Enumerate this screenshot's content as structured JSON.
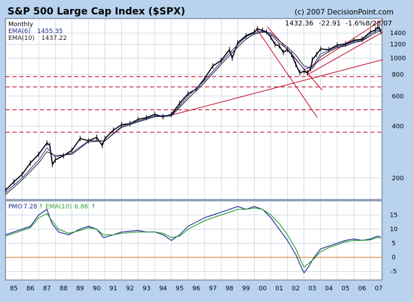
{
  "title": "S&P 500 Large Cap Index ($SPX)",
  "copyright": "(c) 2007 DecisionPoint.com",
  "quote": {
    "last": "1432.36",
    "change": "-22.91",
    "pct_change": "-1.6%",
    "date": "8/28/07"
  },
  "price_panel": {
    "period": "Monthly",
    "ema6_label": "EMA(6)",
    "ema6_value": "1455.35",
    "ema10_label": "EMA(10)",
    "ema10_value": "1437.22"
  },
  "pmo_panel": {
    "pmo_label": "PMO",
    "pmo_value": "7.28",
    "ema_label": "EMA(10)",
    "ema_value": "6.86"
  },
  "colors": {
    "background": "#b9d3ee",
    "panel": "#ffffff",
    "grid": "#b7c7d8",
    "price_bars": "#000000",
    "ema6": "#1f2b8f",
    "ema10": "#1e1e1e",
    "trendlines": "#c8102e",
    "pmo": "#1f2b8f",
    "pmo_signal": "#2e9c35",
    "zero_line": "#c8781e",
    "arrow_up": "#2e9c35"
  },
  "chart_data": [
    {
      "type": "line",
      "title": "S&P 500 Large Cap Index ($SPX)",
      "period": "Monthly",
      "xlabel": "",
      "ylabel": "",
      "x_ticks": [
        "85",
        "86",
        "87",
        "88",
        "89",
        "90",
        "91",
        "92",
        "93",
        "94",
        "95",
        "96",
        "97",
        "98",
        "99",
        "00",
        "01",
        "02",
        "03",
        "04",
        "05",
        "06",
        "07"
      ],
      "x_range": [
        1985.0,
        2007.7
      ],
      "y_scale": "log",
      "y_ticks": [
        200,
        400,
        600,
        800,
        1000,
        1200,
        1400
      ],
      "y_range": [
        150,
        1700
      ],
      "grid": true,
      "series": [
        {
          "name": "$SPX",
          "x": [
            1985.0,
            1985.5,
            1986.0,
            1986.5,
            1987.0,
            1987.5,
            1987.67,
            1987.83,
            1988.0,
            1988.5,
            1989.0,
            1989.5,
            1990.0,
            1990.5,
            1990.83,
            1991.0,
            1991.5,
            1992.0,
            1992.5,
            1993.0,
            1993.5,
            1994.0,
            1994.5,
            1995.0,
            1995.5,
            1996.0,
            1996.5,
            1997.0,
            1997.5,
            1998.0,
            1998.5,
            1998.67,
            1999.0,
            1999.5,
            2000.0,
            2000.2,
            2000.5,
            2000.75,
            2001.0,
            2001.25,
            2001.5,
            2001.75,
            2002.0,
            2002.25,
            2002.5,
            2002.75,
            2003.0,
            2003.2,
            2003.4,
            2003.5,
            2003.75,
            2004.0,
            2004.5,
            2005.0,
            2005.5,
            2006.0,
            2006.5,
            2007.0,
            2007.3,
            2007.45,
            2007.55,
            2007.63
          ],
          "y": [
            170,
            190,
            210,
            245,
            275,
            320,
            310,
            240,
            255,
            270,
            290,
            340,
            330,
            345,
            310,
            340,
            380,
            410,
            415,
            440,
            450,
            470,
            455,
            470,
            545,
            620,
            660,
            760,
            900,
            970,
            1120,
            1000,
            1230,
            1350,
            1420,
            1480,
            1450,
            1420,
            1320,
            1200,
            1180,
            1080,
            1120,
            1050,
            920,
            820,
            840,
            820,
            870,
            980,
            1050,
            1130,
            1120,
            1190,
            1210,
            1270,
            1290,
            1420,
            1460,
            1520,
            1480,
            1432
          ]
        },
        {
          "name": "EMA(6)",
          "x": [
            1985.0,
            1986.0,
            1987.0,
            1987.5,
            1988.0,
            1989.0,
            1990.0,
            1991.0,
            1992.0,
            1993.0,
            1994.0,
            1995.0,
            1996.0,
            1997.0,
            1998.0,
            1999.0,
            1999.5,
            2000.0,
            2000.5,
            2001.0,
            2001.5,
            2002.0,
            2002.5,
            2003.0,
            2003.5,
            2004.0,
            2004.5,
            2005.0,
            2005.5,
            2006.0,
            2006.5,
            2007.0,
            2007.4,
            2007.63
          ],
          "y": [
            165,
            200,
            255,
            300,
            265,
            280,
            330,
            330,
            400,
            430,
            460,
            465,
            600,
            740,
            950,
            1200,
            1330,
            1400,
            1440,
            1370,
            1220,
            1130,
            990,
            860,
            890,
            1060,
            1110,
            1170,
            1190,
            1250,
            1270,
            1380,
            1450,
            1455.35
          ]
        },
        {
          "name": "EMA(10)",
          "x": [
            1985.0,
            1986.0,
            1987.0,
            1987.5,
            1988.0,
            1989.0,
            1990.0,
            1991.0,
            1992.0,
            1993.0,
            1994.0,
            1995.0,
            1996.0,
            1997.0,
            1998.0,
            1999.0,
            1999.5,
            2000.0,
            2000.5,
            2001.0,
            2001.5,
            2002.0,
            2002.5,
            2003.0,
            2003.5,
            2004.0,
            2004.5,
            2005.0,
            2005.5,
            2006.0,
            2006.5,
            2007.0,
            2007.4,
            2007.63
          ],
          "y": [
            160,
            195,
            245,
            285,
            270,
            275,
            325,
            330,
            395,
            425,
            455,
            460,
            580,
            720,
            920,
            1160,
            1290,
            1380,
            1420,
            1400,
            1260,
            1160,
            1040,
            900,
            870,
            1020,
            1090,
            1150,
            1180,
            1230,
            1260,
            1350,
            1420,
            1437.22
          ]
        }
      ],
      "horizontal_lines": [
        370,
        500,
        680,
        780
      ],
      "trendlines": [
        {
          "x": [
            1995.0,
            2007.75
          ],
          "y": [
            465,
            980
          ]
        },
        {
          "x": [
            2000.1,
            2003.8
          ],
          "y": [
            1500,
            450
          ]
        },
        {
          "x": [
            2000.8,
            2004.1
          ],
          "y": [
            1520,
            650
          ]
        },
        {
          "x": [
            2003.2,
            2007.75
          ],
          "y": [
            800,
            1420
          ]
        },
        {
          "x": [
            2003.2,
            2007.75
          ],
          "y": [
            870,
            1680
          ]
        }
      ]
    },
    {
      "type": "line",
      "title": "PMO",
      "xlabel": "",
      "ylabel": "",
      "x_ticks": [
        "85",
        "86",
        "87",
        "88",
        "89",
        "90",
        "91",
        "92",
        "93",
        "94",
        "95",
        "96",
        "97",
        "98",
        "99",
        "00",
        "01",
        "02",
        "03",
        "04",
        "05",
        "06",
        "07"
      ],
      "y_ticks": [
        -5,
        0,
        5,
        10,
        15
      ],
      "y_range": [
        -8,
        20
      ],
      "grid": true,
      "series": [
        {
          "name": "PMO",
          "x": [
            1985.0,
            1986.0,
            1986.5,
            1987.0,
            1987.5,
            1987.8,
            1988.2,
            1988.8,
            1989.5,
            1990.0,
            1990.5,
            1990.9,
            1991.5,
            1992.0,
            1993.0,
            1993.5,
            1994.0,
            1994.5,
            1995.0,
            1995.5,
            1996.0,
            1997.0,
            1997.5,
            1998.0,
            1998.5,
            1999.0,
            1999.5,
            2000.0,
            2000.5,
            2001.0,
            2001.5,
            2002.0,
            2002.5,
            2002.8,
            2003.0,
            2003.3,
            2003.6,
            2004.0,
            2004.5,
            2005.0,
            2005.5,
            2006.0,
            2006.5,
            2007.0,
            2007.4,
            2007.63
          ],
          "y": [
            8,
            10,
            11,
            15,
            17,
            12,
            9,
            8,
            10,
            11,
            10,
            7,
            8,
            9,
            9.5,
            9,
            9,
            8,
            6,
            8,
            11,
            14,
            15,
            16,
            17,
            18,
            17,
            18,
            17,
            14,
            10,
            6,
            1,
            -3,
            -5.5,
            -3,
            0,
            3,
            4,
            5,
            6,
            6.5,
            6,
            6.5,
            7.5,
            7.28
          ]
        },
        {
          "name": "EMA(10)",
          "x": [
            1985.0,
            1986.0,
            1986.5,
            1987.0,
            1987.5,
            1987.8,
            1988.2,
            1988.8,
            1989.5,
            1990.0,
            1990.5,
            1990.9,
            1991.5,
            1992.0,
            1993.0,
            1993.5,
            1994.0,
            1994.5,
            1995.0,
            1995.5,
            1996.0,
            1997.0,
            1997.5,
            1998.0,
            1998.5,
            1999.0,
            1999.5,
            2000.0,
            2000.5,
            2001.0,
            2001.5,
            2002.0,
            2002.5,
            2002.8,
            2003.0,
            2003.3,
            2003.6,
            2004.0,
            2004.5,
            2005.0,
            2005.5,
            2006.0,
            2006.5,
            2007.0,
            2007.4,
            2007.63
          ],
          "y": [
            7.5,
            9.5,
            10.5,
            14,
            15.5,
            13,
            10,
            8.5,
            9.5,
            10.5,
            10,
            8,
            8,
            8.5,
            9,
            9,
            9,
            8.5,
            7,
            7.5,
            10,
            13,
            14,
            15,
            16,
            17,
            17,
            17.5,
            17,
            15,
            12,
            8,
            3,
            -1,
            -3.5,
            -2,
            -0.5,
            2,
            3.5,
            4.5,
            5.5,
            6,
            6,
            6.2,
            7,
            6.86
          ]
        }
      ],
      "horizontal_lines": [
        0
      ]
    }
  ]
}
